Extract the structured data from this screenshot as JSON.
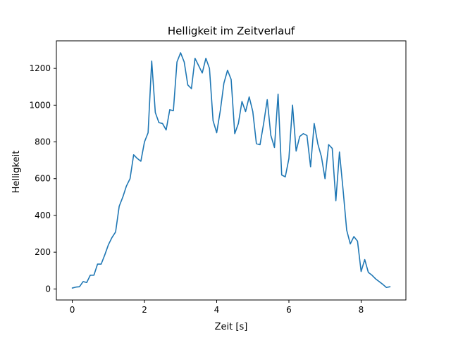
{
  "chart_data": {
    "type": "line",
    "title": "Helligkeit im Zeitverlauf",
    "xlabel": "Zeit [s]",
    "ylabel": "Helligkeit",
    "xlim": [
      -0.44,
      9.24
    ],
    "ylim": [
      -60,
      1350
    ],
    "xticks": [
      0,
      2,
      4,
      6,
      8
    ],
    "yticks": [
      0,
      200,
      400,
      600,
      800,
      1000,
      1200
    ],
    "grid": false,
    "series": [
      {
        "color": "#1f77b4",
        "x": [
          0.0,
          0.1,
          0.2,
          0.3,
          0.4,
          0.5,
          0.6,
          0.7,
          0.8,
          0.9,
          1.0,
          1.1,
          1.2,
          1.3,
          1.4,
          1.5,
          1.6,
          1.7,
          1.8,
          1.9,
          2.0,
          2.1,
          2.2,
          2.3,
          2.4,
          2.5,
          2.6,
          2.7,
          2.8,
          2.9,
          3.0,
          3.1,
          3.2,
          3.3,
          3.4,
          3.5,
          3.6,
          3.7,
          3.8,
          3.9,
          4.0,
          4.1,
          4.2,
          4.3,
          4.4,
          4.5,
          4.6,
          4.7,
          4.8,
          4.9,
          5.0,
          5.1,
          5.2,
          5.3,
          5.4,
          5.5,
          5.6,
          5.7,
          5.8,
          5.9,
          6.0,
          6.1,
          6.2,
          6.3,
          6.4,
          6.5,
          6.6,
          6.7,
          6.8,
          6.9,
          7.0,
          7.1,
          7.2,
          7.3,
          7.4,
          7.5,
          7.6,
          7.7,
          7.8,
          7.9,
          8.0,
          8.1,
          8.2,
          8.3,
          8.4,
          8.5,
          8.6,
          8.7,
          8.8
        ],
        "y": [
          5,
          10,
          12,
          40,
          35,
          75,
          75,
          135,
          135,
          185,
          240,
          280,
          310,
          450,
          500,
          560,
          600,
          730,
          710,
          695,
          800,
          850,
          1240,
          960,
          905,
          900,
          865,
          975,
          970,
          1235,
          1285,
          1235,
          1110,
          1090,
          1255,
          1215,
          1175,
          1255,
          1200,
          915,
          850,
          970,
          1120,
          1190,
          1140,
          845,
          900,
          1020,
          965,
          1045,
          965,
          790,
          785,
          900,
          1030,
          835,
          770,
          1060,
          620,
          610,
          710,
          1000,
          750,
          830,
          845,
          835,
          665,
          900,
          790,
          720,
          600,
          785,
          765,
          480,
          745,
          540,
          320,
          245,
          285,
          260,
          95,
          160,
          90,
          75,
          55,
          40,
          25,
          8,
          12
        ]
      }
    ]
  }
}
